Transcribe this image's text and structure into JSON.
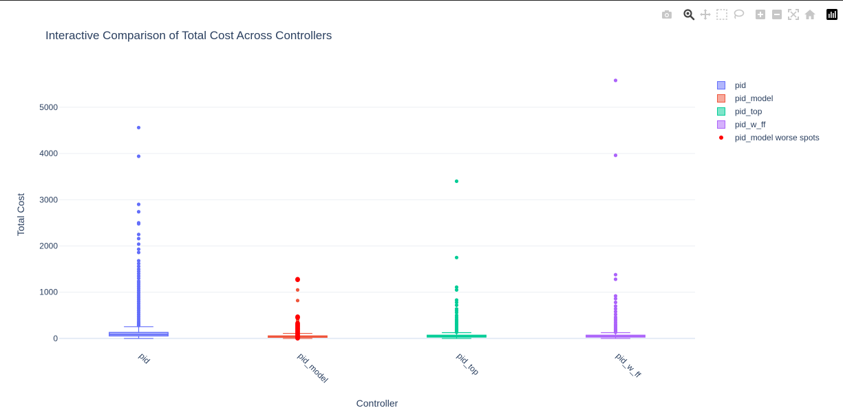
{
  "title": "Interactive Comparison of Total Cost Across Controllers",
  "modebar": {
    "buttons": [
      {
        "icon": "camera-icon",
        "name": "download-plot-button"
      },
      {
        "icon": "zoom-icon",
        "name": "zoom-button"
      },
      {
        "icon": "pan-icon",
        "name": "pan-button"
      },
      {
        "icon": "box-select-icon",
        "name": "box-select-button"
      },
      {
        "icon": "lasso-select-icon",
        "name": "lasso-select-button"
      },
      {
        "icon": "zoom-in-icon",
        "name": "zoom-in-button"
      },
      {
        "icon": "zoom-out-icon",
        "name": "zoom-out-button"
      },
      {
        "icon": "autoscale-icon",
        "name": "autoscale-button"
      },
      {
        "icon": "home-icon",
        "name": "reset-axes-button"
      },
      {
        "icon": "plotly-logo-icon",
        "name": "plotly-logo"
      }
    ]
  },
  "chart_data": {
    "type": "box",
    "title": "Interactive Comparison of Total Cost Across Controllers",
    "xlabel": "Controller",
    "ylabel": "Total Cost",
    "categories": [
      "pid",
      "pid_model",
      "pid_top",
      "pid_w_ff"
    ],
    "ylim": [
      -120,
      5950
    ],
    "yticks": [
      0,
      1000,
      2000,
      3000,
      4000,
      5000
    ],
    "grid": true,
    "legend_position": "right",
    "series": [
      {
        "name": "pid",
        "category": "pid",
        "color": "#636efa",
        "min": 0,
        "q1": 55,
        "median": 85,
        "q3": 130,
        "upper_fence": 255,
        "outliers": [
          4560,
          3940,
          2900,
          2740,
          2500,
          2480,
          2250,
          2160,
          2040,
          1930,
          1860,
          1680,
          1620,
          1560,
          1500,
          1450,
          1400,
          1350,
          1300,
          1240,
          1200,
          1160,
          1120,
          1080,
          1040,
          1000,
          960,
          920,
          880,
          840,
          800,
          760,
          720,
          680,
          640,
          600,
          560,
          520,
          480,
          440,
          400,
          360,
          330,
          300,
          280
        ]
      },
      {
        "name": "pid_model",
        "category": "pid_model",
        "color": "#ef553b",
        "min": 0,
        "q1": 25,
        "median": 40,
        "q3": 55,
        "upper_fence": 110,
        "outliers": [
          1050,
          820,
          480,
          420,
          380,
          340,
          300,
          270,
          240,
          210,
          190,
          170,
          150,
          130,
          120
        ]
      },
      {
        "name": "pid_top",
        "category": "pid_top",
        "color": "#00cc96",
        "min": 0,
        "q1": 30,
        "median": 50,
        "q3": 70,
        "upper_fence": 125,
        "outliers": [
          3400,
          1750,
          1110,
          1050,
          830,
          780,
          720,
          640,
          600,
          560,
          500,
          460,
          420,
          390,
          360,
          330,
          300,
          270,
          240,
          210,
          190,
          170,
          150,
          135
        ]
      },
      {
        "name": "pid_w_ff",
        "category": "pid_w_ff",
        "color": "#ab63fa",
        "min": 0,
        "q1": 30,
        "median": 50,
        "q3": 70,
        "upper_fence": 125,
        "outliers": [
          5580,
          3960,
          1380,
          1280,
          920,
          860,
          780,
          700,
          640,
          580,
          520,
          460,
          420,
          380,
          340,
          300,
          270,
          240,
          210,
          190,
          170,
          150,
          135
        ]
      }
    ],
    "worse_spots": {
      "name": "pid_model worse spots",
      "category": "pid_model",
      "color": "#ff0000",
      "values": [
        1280,
        1270,
        470,
        450,
        330,
        310,
        290,
        270,
        250,
        230,
        210,
        190,
        170,
        150,
        130,
        110,
        90,
        70,
        50,
        30,
        15,
        5
      ]
    }
  }
}
